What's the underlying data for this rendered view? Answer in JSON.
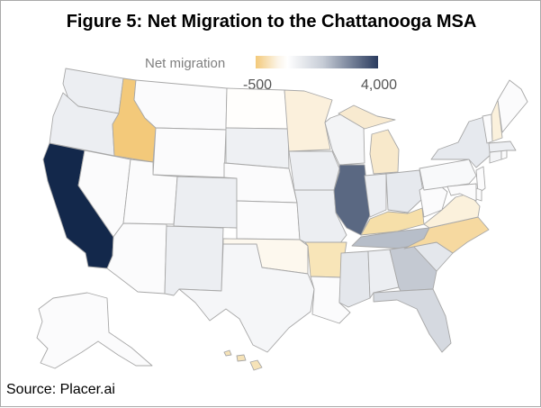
{
  "title": "Figure 5: Net Migration to the Chattanooga MSA",
  "legend": {
    "label": "Net migration",
    "min_label": "-500",
    "max_label": "4,000"
  },
  "source": "Source: Placer.ai",
  "colors": {
    "lowest": "#f3c97a",
    "light_orange": "#f8e5b8",
    "near_white": "#fbfbfc",
    "light_gray": "#eceef2",
    "mid_gray": "#c4c9d2",
    "steel": "#5a6882",
    "highest": "#13284b",
    "border": "#a8a8a8"
  },
  "states": [
    {
      "name": "WA",
      "color": "#eceef2"
    },
    {
      "name": "OR",
      "color": "#eceef2"
    },
    {
      "name": "CA",
      "color": "#13284b"
    },
    {
      "name": "NV",
      "color": "#fbfbfc"
    },
    {
      "name": "ID",
      "color": "#f3c97a"
    },
    {
      "name": "MT",
      "color": "#fbfbfc"
    },
    {
      "name": "WY",
      "color": "#fbfbfc"
    },
    {
      "name": "UT",
      "color": "#fbfbfc"
    },
    {
      "name": "AZ",
      "color": "#fbfbfc"
    },
    {
      "name": "CO",
      "color": "#eceef2"
    },
    {
      "name": "NM",
      "color": "#eceef2"
    },
    {
      "name": "ND",
      "color": "#fffefc"
    },
    {
      "name": "SD",
      "color": "#eef0f3"
    },
    {
      "name": "NE",
      "color": "#fbfbfc"
    },
    {
      "name": "KS",
      "color": "#fbfbfc"
    },
    {
      "name": "OK",
      "color": "#fdf8ee"
    },
    {
      "name": "TX",
      "color": "#f5f6f8"
    },
    {
      "name": "MN",
      "color": "#fbf0dc"
    },
    {
      "name": "IA",
      "color": "#eceef2"
    },
    {
      "name": "MO",
      "color": "#eceef2"
    },
    {
      "name": "AR",
      "color": "#f8e5b8"
    },
    {
      "name": "LA",
      "color": "#fbfbfc"
    },
    {
      "name": "WI",
      "color": "#f3f4f6"
    },
    {
      "name": "IL",
      "color": "#5a6882"
    },
    {
      "name": "MI_U",
      "color": "#f8ead0"
    },
    {
      "name": "MI_L",
      "color": "#f8e9cb"
    },
    {
      "name": "IN",
      "color": "#eceef2"
    },
    {
      "name": "OH",
      "color": "#e6e9ee"
    },
    {
      "name": "KY",
      "color": "#f6dfa9"
    },
    {
      "name": "TN",
      "color": "#b7bec9"
    },
    {
      "name": "MS",
      "color": "#e4e7ec"
    },
    {
      "name": "AL",
      "color": "#eceef2"
    },
    {
      "name": "GA",
      "color": "#c4c9d2"
    },
    {
      "name": "FL",
      "color": "#d5d9e0"
    },
    {
      "name": "SC",
      "color": "#e4e7ec"
    },
    {
      "name": "NC",
      "color": "#f6d9a0"
    },
    {
      "name": "VA",
      "color": "#fbf1dc"
    },
    {
      "name": "WV",
      "color": "#fbfbfc"
    },
    {
      "name": "PA",
      "color": "#f8f9fa"
    },
    {
      "name": "NY",
      "color": "#e6e9ee"
    },
    {
      "name": "NJ",
      "color": "#fbfbfc"
    },
    {
      "name": "DE",
      "color": "#fbfbfc"
    },
    {
      "name": "MD",
      "color": "#fbfbfc"
    },
    {
      "name": "CT",
      "color": "#f3f4f6"
    },
    {
      "name": "RI",
      "color": "#fbfbfc"
    },
    {
      "name": "MA",
      "color": "#eceef2"
    },
    {
      "name": "VT",
      "color": "#fbfbfc"
    },
    {
      "name": "NH",
      "color": "#fbf1dc"
    },
    {
      "name": "ME",
      "color": "#fbfbfc"
    },
    {
      "name": "AK",
      "color": "#fbfbfc"
    },
    {
      "name": "HI",
      "color": "#f6e3b8"
    }
  ]
}
